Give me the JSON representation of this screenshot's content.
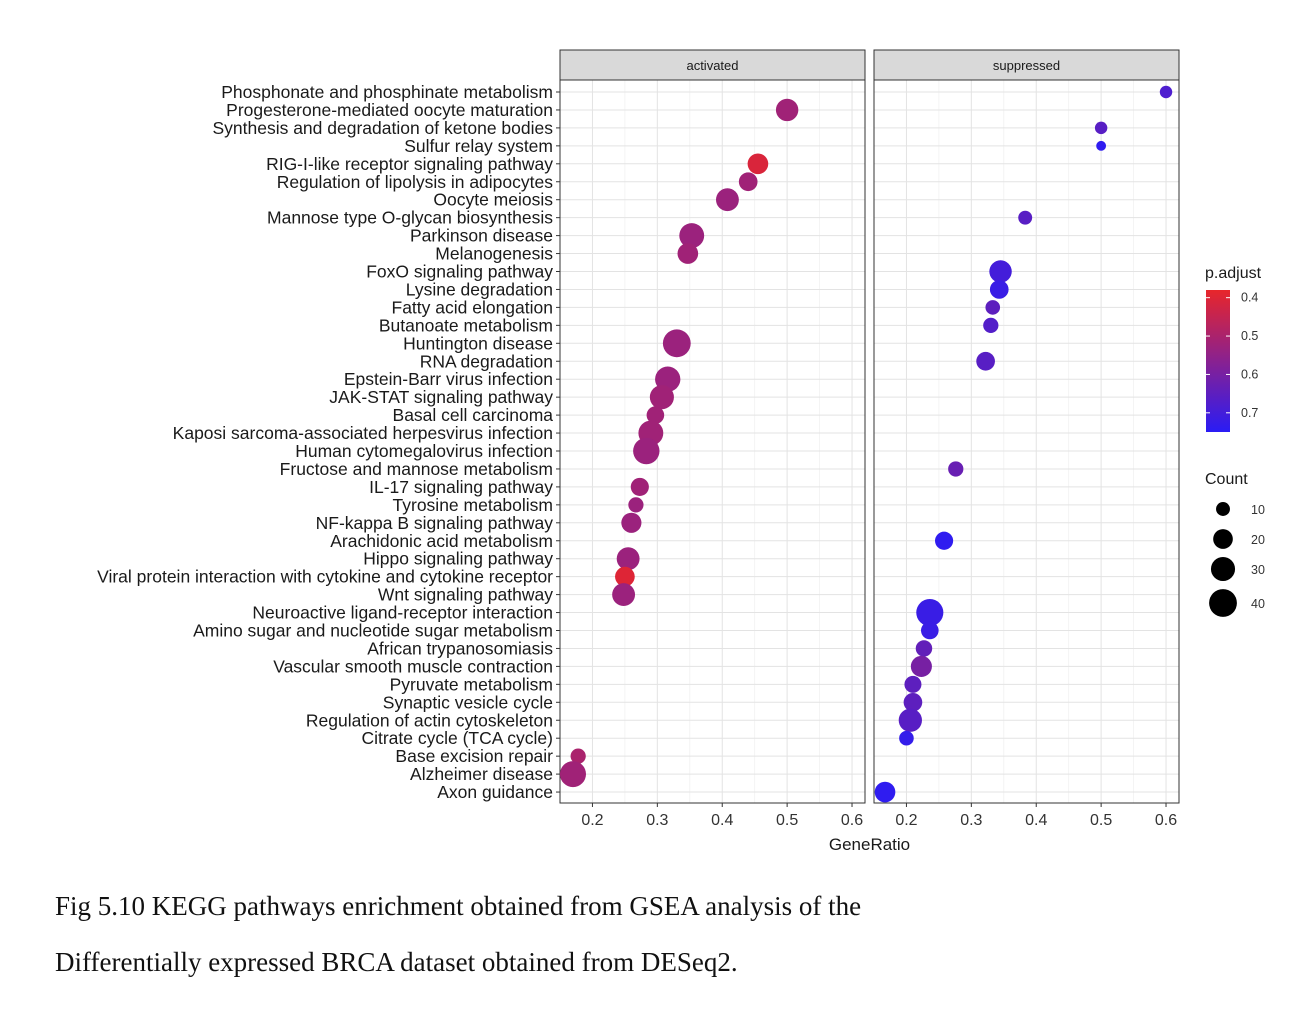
{
  "chart_data": {
    "type": "scatter",
    "xlabel": "GeneRatio",
    "facets": [
      "activated",
      "suppressed"
    ],
    "xlim": [
      0.15,
      0.62
    ],
    "x_ticks": [
      "0.2",
      "0.3",
      "0.4",
      "0.5",
      "0.6"
    ],
    "grid": true,
    "categories": [
      "Phosphonate and phosphinate metabolism",
      "Progesterone-mediated oocyte maturation",
      "Synthesis and degradation of ketone bodies",
      "Sulfur relay system",
      "RIG-I-like receptor signaling pathway",
      "Regulation of lipolysis in adipocytes",
      "Oocyte meiosis",
      "Mannose type O-glycan biosynthesis",
      "Parkinson disease",
      "Melanogenesis",
      "FoxO signaling pathway",
      "Lysine degradation",
      "Fatty acid elongation",
      "Butanoate metabolism",
      "Huntington disease",
      "RNA degradation",
      "Epstein-Barr virus infection",
      "JAK-STAT signaling pathway",
      "Basal cell carcinoma",
      "Kaposi sarcoma-associated herpesvirus infection",
      "Human cytomegalovirus infection",
      "Fructose and mannose metabolism",
      "IL-17 signaling pathway",
      "Tyrosine metabolism",
      "NF-kappa B signaling pathway",
      "Arachidonic acid metabolism",
      "Hippo signaling pathway",
      "Viral protein interaction with cytokine and cytokine receptor",
      "Wnt signaling pathway",
      "Neuroactive ligand-receptor interaction",
      "Amino sugar and nucleotide sugar metabolism",
      "African trypanosomiasis",
      "Vascular smooth muscle contraction",
      "Pyruvate metabolism",
      "Synaptic vesicle cycle",
      "Regulation of actin cytoskeleton",
      "Citrate cycle (TCA cycle)",
      "Base excision repair",
      "Alzheimer disease",
      "Axon guidance"
    ],
    "points": [
      {
        "facet": "suppressed",
        "category": "Phosphonate and phosphinate metabolism",
        "x": 0.6,
        "count": 8,
        "p_adjust": 0.68
      },
      {
        "facet": "activated",
        "category": "Progesterone-mediated oocyte maturation",
        "x": 0.5,
        "count": 26,
        "p_adjust": 0.52
      },
      {
        "facet": "suppressed",
        "category": "Synthesis and degradation of ketone bodies",
        "x": 0.5,
        "count": 8,
        "p_adjust": 0.66
      },
      {
        "facet": "suppressed",
        "category": "Sulfur relay system",
        "x": 0.5,
        "count": 5,
        "p_adjust": 0.74
      },
      {
        "facet": "activated",
        "category": "RIG-I-like receptor signaling pathway",
        "x": 0.455,
        "count": 22,
        "p_adjust": 0.41
      },
      {
        "facet": "activated",
        "category": "Regulation of lipolysis in adipocytes",
        "x": 0.44,
        "count": 18,
        "p_adjust": 0.52
      },
      {
        "facet": "activated",
        "category": "Oocyte meiosis",
        "x": 0.408,
        "count": 27,
        "p_adjust": 0.53
      },
      {
        "facet": "suppressed",
        "category": "Mannose type O-glycan biosynthesis",
        "x": 0.383,
        "count": 10,
        "p_adjust": 0.66
      },
      {
        "facet": "activated",
        "category": "Parkinson disease",
        "x": 0.353,
        "count": 32,
        "p_adjust": 0.53
      },
      {
        "facet": "activated",
        "category": "Melanogenesis",
        "x": 0.347,
        "count": 22,
        "p_adjust": 0.52
      },
      {
        "facet": "suppressed",
        "category": "FoxO signaling pathway",
        "x": 0.345,
        "count": 26,
        "p_adjust": 0.7
      },
      {
        "facet": "suppressed",
        "category": "Lysine degradation",
        "x": 0.343,
        "count": 18,
        "p_adjust": 0.72
      },
      {
        "facet": "suppressed",
        "category": "Fatty acid elongation",
        "x": 0.333,
        "count": 11,
        "p_adjust": 0.65
      },
      {
        "facet": "suppressed",
        "category": "Butanoate metabolism",
        "x": 0.33,
        "count": 12,
        "p_adjust": 0.67
      },
      {
        "facet": "activated",
        "category": "Huntington disease",
        "x": 0.33,
        "count": 40,
        "p_adjust": 0.53
      },
      {
        "facet": "suppressed",
        "category": "RNA degradation",
        "x": 0.322,
        "count": 18,
        "p_adjust": 0.66
      },
      {
        "facet": "activated",
        "category": "Epstein-Barr virus infection",
        "x": 0.316,
        "count": 33,
        "p_adjust": 0.53
      },
      {
        "facet": "activated",
        "category": "JAK-STAT signaling pathway",
        "x": 0.307,
        "count": 30,
        "p_adjust": 0.52
      },
      {
        "facet": "activated",
        "category": "Basal cell carcinoma",
        "x": 0.297,
        "count": 16,
        "p_adjust": 0.52
      },
      {
        "facet": "activated",
        "category": "Kaposi sarcoma-associated herpesvirus infection",
        "x": 0.29,
        "count": 32,
        "p_adjust": 0.52
      },
      {
        "facet": "activated",
        "category": "Human cytomegalovirus infection",
        "x": 0.283,
        "count": 36,
        "p_adjust": 0.53
      },
      {
        "facet": "suppressed",
        "category": "Fructose and mannose metabolism",
        "x": 0.276,
        "count": 12,
        "p_adjust": 0.63
      },
      {
        "facet": "activated",
        "category": "IL-17 signaling pathway",
        "x": 0.273,
        "count": 17,
        "p_adjust": 0.52
      },
      {
        "facet": "activated",
        "category": "Tyrosine metabolism",
        "x": 0.267,
        "count": 12,
        "p_adjust": 0.53
      },
      {
        "facet": "activated",
        "category": "NF-kappa B signaling pathway",
        "x": 0.26,
        "count": 21,
        "p_adjust": 0.53
      },
      {
        "facet": "suppressed",
        "category": "Arachidonic acid metabolism",
        "x": 0.258,
        "count": 17,
        "p_adjust": 0.74
      },
      {
        "facet": "activated",
        "category": "Hippo signaling pathway",
        "x": 0.255,
        "count": 27,
        "p_adjust": 0.53
      },
      {
        "facet": "activated",
        "category": "Viral protein interaction with cytokine and cytokine receptor",
        "x": 0.25,
        "count": 20,
        "p_adjust": 0.4
      },
      {
        "facet": "activated",
        "category": "Wnt signaling pathway",
        "x": 0.248,
        "count": 27,
        "p_adjust": 0.53
      },
      {
        "facet": "suppressed",
        "category": "Neuroactive ligand-receptor interaction",
        "x": 0.236,
        "count": 38,
        "p_adjust": 0.72
      },
      {
        "facet": "suppressed",
        "category": "Amino sugar and nucleotide sugar metabolism",
        "x": 0.236,
        "count": 16,
        "p_adjust": 0.72
      },
      {
        "facet": "suppressed",
        "category": "African trypanosomiasis",
        "x": 0.227,
        "count": 14,
        "p_adjust": 0.64
      },
      {
        "facet": "suppressed",
        "category": "Vascular smooth muscle contraction",
        "x": 0.223,
        "count": 23,
        "p_adjust": 0.6
      },
      {
        "facet": "suppressed",
        "category": "Pyruvate metabolism",
        "x": 0.21,
        "count": 15,
        "p_adjust": 0.65
      },
      {
        "facet": "suppressed",
        "category": "Synaptic vesicle cycle",
        "x": 0.21,
        "count": 18,
        "p_adjust": 0.65
      },
      {
        "facet": "suppressed",
        "category": "Regulation of actin cytoskeleton",
        "x": 0.206,
        "count": 28,
        "p_adjust": 0.66
      },
      {
        "facet": "suppressed",
        "category": "Citrate cycle (TCA cycle)",
        "x": 0.2,
        "count": 11,
        "p_adjust": 0.73
      },
      {
        "facet": "activated",
        "category": "Base excision repair",
        "x": 0.178,
        "count": 12,
        "p_adjust": 0.5
      },
      {
        "facet": "activated",
        "category": "Alzheimer disease",
        "x": 0.17,
        "count": 35,
        "p_adjust": 0.52
      },
      {
        "facet": "suppressed",
        "category": "Axon guidance",
        "x": 0.167,
        "count": 22,
        "p_adjust": 0.74
      }
    ],
    "legend": {
      "color": {
        "title": "p.adjust",
        "ticks": [
          "0.4",
          "0.5",
          "0.6",
          "0.7"
        ],
        "domain": [
          0.38,
          0.75
        ],
        "colors": [
          "#e8262b",
          "#2a1cf5"
        ]
      },
      "size": {
        "title": "Count",
        "entries": [
          10,
          20,
          30,
          40
        ]
      },
      "placement": "right"
    }
  },
  "caption": {
    "line1": "Fig 5.10  KEGG pathways enrichment obtained from GSEA analysis of the",
    "line2": "Differentially expressed BRCA dataset obtained from DESeq2."
  }
}
